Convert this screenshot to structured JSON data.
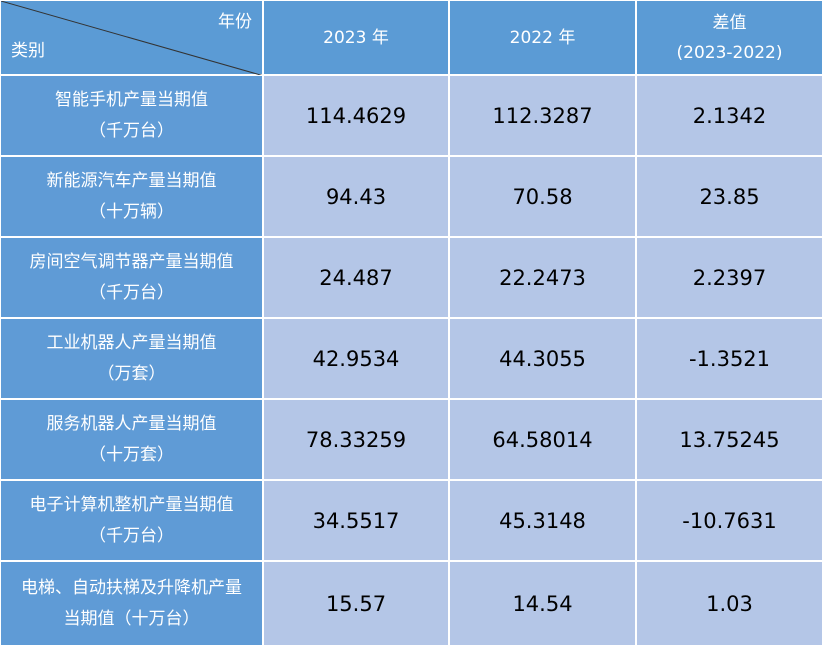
{
  "header": {
    "corner_top": "年份",
    "corner_bottom": "类别",
    "columns": [
      [
        "2023 年"
      ],
      [
        "2022 年"
      ],
      [
        "差值",
        "(2023-2022)"
      ]
    ]
  },
  "rows": [
    {
      "label": [
        "智能手机产量当期值",
        "（千万台）"
      ],
      "values": [
        "114.4629",
        "112.3287",
        "2.1342"
      ]
    },
    {
      "label": [
        "新能源汽车产量当期值",
        "（十万辆）"
      ],
      "values": [
        "94.43",
        "70.58",
        "23.85"
      ]
    },
    {
      "label": [
        "房间空气调节器产量当期值",
        "（千万台）"
      ],
      "values": [
        "24.487",
        "22.2473",
        "2.2397"
      ]
    },
    {
      "label": [
        "工业机器人产量当期值",
        "（万套）"
      ],
      "values": [
        "42.9534",
        "44.3055",
        "-1.3521"
      ]
    },
    {
      "label": [
        "服务机器人产量当期值",
        "（十万套）"
      ],
      "values": [
        "78.33259",
        "64.58014",
        "13.75245"
      ]
    },
    {
      "label": [
        "电子计算机整机产量当期值",
        "（千万台）"
      ],
      "values": [
        "34.5517",
        "45.3148",
        "-10.7631"
      ]
    },
    {
      "label": [
        "电梯、自动扶梯及升降机产量",
        "当期值（十万台）"
      ],
      "values": [
        "15.57",
        "14.54",
        "1.03"
      ]
    }
  ]
}
